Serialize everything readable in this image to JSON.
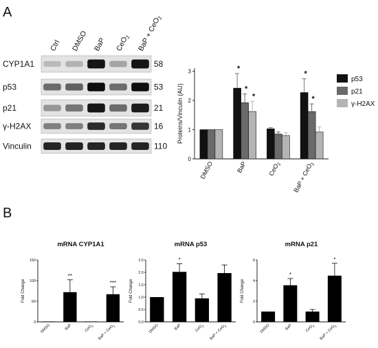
{
  "panel_labels": {
    "a": "A",
    "b": "B"
  },
  "blot": {
    "lanes": [
      "Ctrl",
      "DMSO",
      "BaP",
      "CeO2",
      "BaP + CeO2"
    ],
    "rows": [
      {
        "name": "CYP1A1",
        "kda": "58",
        "intensity": [
          0.18,
          0.22,
          0.95,
          0.28,
          0.95
        ]
      },
      {
        "name": "p53",
        "kda": "53",
        "intensity": [
          0.55,
          0.6,
          0.98,
          0.55,
          0.98
        ]
      },
      {
        "name": "p21",
        "kda": "21",
        "intensity": [
          0.35,
          0.5,
          0.95,
          0.55,
          0.92
        ]
      },
      {
        "name": "γ-H2AX",
        "kda": "16",
        "intensity": [
          0.45,
          0.45,
          0.85,
          0.5,
          0.8
        ]
      },
      {
        "name": "Vinculin",
        "kda": "110",
        "intensity": [
          0.88,
          0.88,
          0.88,
          0.88,
          0.88
        ]
      }
    ]
  },
  "chart_data": [
    {
      "type": "bar",
      "panel": "A",
      "categories": [
        "DMSO",
        "BaP",
        "CeO2",
        "BaP + CeO2"
      ],
      "ylabel": "Proteins/Vinculin (AU)",
      "ylim": [
        0,
        3.2
      ],
      "yticks": [
        0,
        1,
        2,
        3
      ],
      "legend_position": "right",
      "series": [
        {
          "name": "p53",
          "color": "#111111",
          "values": [
            1.0,
            2.42,
            1.03,
            2.27
          ],
          "errors": [
            0,
            0.5,
            0.04,
            0.47
          ],
          "sig": [
            "",
            "*",
            "",
            "*"
          ]
        },
        {
          "name": "p21",
          "color": "#6a6a6a",
          "values": [
            1.0,
            1.92,
            0.85,
            1.62
          ],
          "errors": [
            0,
            0.3,
            0.07,
            0.26
          ],
          "sig": [
            "",
            "*",
            "",
            "*"
          ]
        },
        {
          "name": "γ-H2AX",
          "color": "#b4b4b4",
          "values": [
            1.0,
            1.62,
            0.8,
            0.92
          ],
          "errors": [
            0,
            0.35,
            0.1,
            0.18
          ],
          "sig": [
            "",
            "*",
            "",
            ""
          ]
        }
      ]
    },
    {
      "type": "bar",
      "panel": "B",
      "title": "mRNA CYP1A1",
      "ylabel": "Fold Change",
      "categories": [
        "DMSO",
        "BaP",
        "CeO2",
        "BaP + CeO2"
      ],
      "ylim": [
        0,
        150
      ],
      "yticks": [
        0,
        50,
        100,
        150
      ],
      "values": [
        1,
        72,
        1,
        67
      ],
      "errors": [
        0,
        30,
        0,
        18
      ],
      "sig": [
        "",
        "**",
        "",
        "***"
      ]
    },
    {
      "type": "bar",
      "panel": "B",
      "title": "mRNA p53",
      "ylabel": "Fold Change",
      "categories": [
        "DMSO",
        "BaP",
        "CeO2",
        "BaP + CeO2"
      ],
      "ylim": [
        0,
        2.5
      ],
      "yticks": [
        0.0,
        0.5,
        1.0,
        1.5,
        2.0,
        2.5
      ],
      "ytick_labels": [
        "0.0",
        "0.5",
        "1.0",
        "1.5",
        "2.0",
        "2.5"
      ],
      "values": [
        1.0,
        2.02,
        0.95,
        1.97
      ],
      "errors": [
        0,
        0.33,
        0.18,
        0.33
      ],
      "sig": [
        "",
        "*",
        "",
        ""
      ]
    },
    {
      "type": "bar",
      "panel": "B",
      "title": "mRNA p21",
      "ylabel": "Fold Change",
      "categories": [
        "DMSO",
        "BaP",
        "CeO2",
        "BaP + CeO2"
      ],
      "ylim": [
        0,
        6
      ],
      "yticks": [
        0,
        2,
        4,
        6
      ],
      "values": [
        1.0,
        3.55,
        1.0,
        4.48
      ],
      "errors": [
        0,
        0.65,
        0.2,
        1.2
      ],
      "sig": [
        "",
        "*",
        "",
        "*"
      ]
    }
  ]
}
